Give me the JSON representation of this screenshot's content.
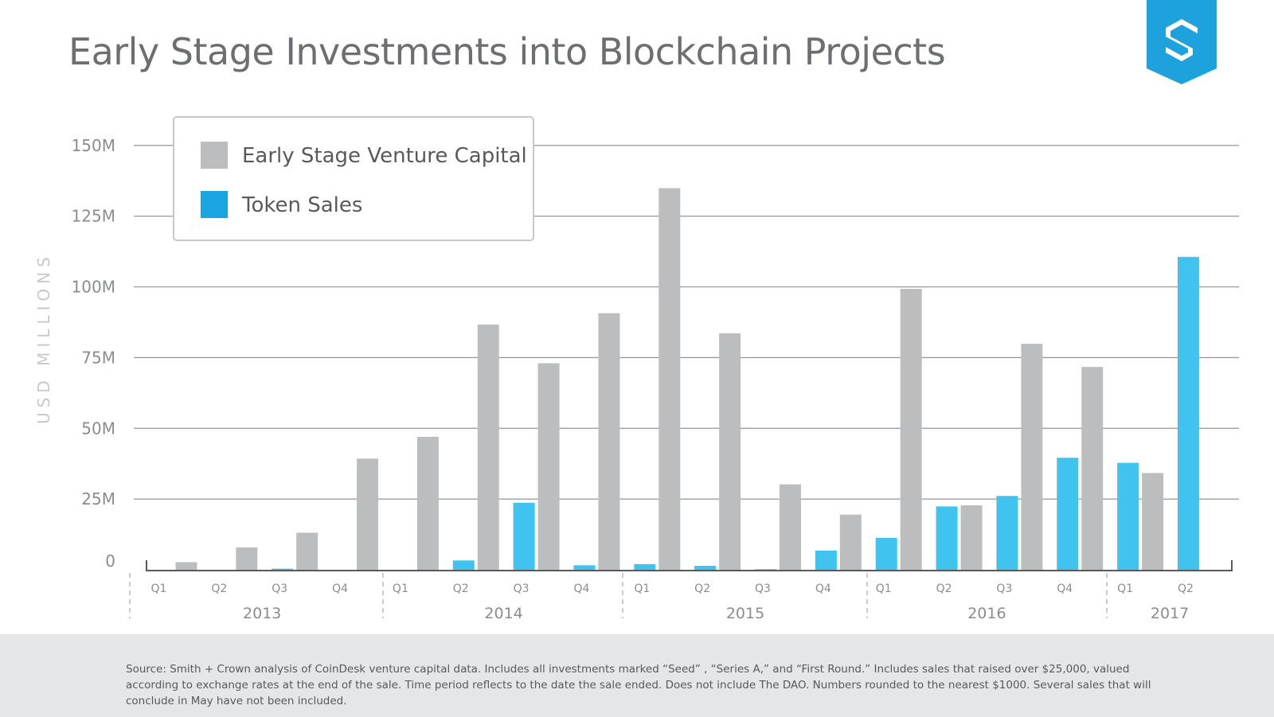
{
  "chart_data": {
    "type": "bar",
    "title": "Early Stage Investments into Blockchain Projects",
    "ylabel": "USD MILLIONS",
    "xlabel": "",
    "ylim": [
      0,
      150
    ],
    "y_ticks": [
      0,
      25,
      50,
      75,
      100,
      125,
      150
    ],
    "y_tick_labels": [
      "0",
      "25M",
      "50M",
      "75M",
      "100M",
      "125M",
      "150M"
    ],
    "grid": true,
    "legend_position": "top-left",
    "categories": [
      "Q1",
      "Q2",
      "Q3",
      "Q4",
      "Q1",
      "Q2",
      "Q3",
      "Q4",
      "Q1",
      "Q2",
      "Q3",
      "Q4",
      "Q1",
      "Q2",
      "Q3",
      "Q4",
      "Q1",
      "Q2"
    ],
    "years": [
      {
        "label": "2013",
        "quarters": 4
      },
      {
        "label": "2014",
        "quarters": 4
      },
      {
        "label": "2015",
        "quarters": 4
      },
      {
        "label": "2016",
        "quarters": 4
      },
      {
        "label": "2017",
        "quarters": 2
      }
    ],
    "series": [
      {
        "name": "Token Sales",
        "color": "#40c4ef",
        "values": [
          0,
          0,
          0.4,
          0,
          0,
          3.3,
          23.7,
          1.6,
          2,
          1.4,
          0.2,
          6.8,
          11.3,
          22.4,
          26.1,
          39.6,
          37.8,
          110.6
        ]
      },
      {
        "name": "Early Stage Venture Capital",
        "color": "#bcbdbf",
        "values": [
          2.7,
          7.9,
          13.1,
          39.3,
          47,
          86.7,
          73,
          90.7,
          134.9,
          83.6,
          30.2,
          19.5,
          99.3,
          22.8,
          79.9,
          71.7,
          34.2,
          null
        ]
      }
    ],
    "legend": [
      {
        "label": "Early Stage Venture Capital",
        "color": "#bcbdbf"
      },
      {
        "label": "Token Sales",
        "color": "#1aa5e0"
      }
    ]
  },
  "footer": {
    "source": "Source: Smith + Crown analysis of CoinDesk venture capital data. Includes all investments marked “Seed” , “Series A,” and “First Round.”  Includes sales that raised over $25,000, valued according to exchange rates at the end of the sale. Time period reflects to the date the sale ended. Does not include The DAO. Numbers rounded to the nearest $1000. Several sales that will conclude in May have not been included."
  },
  "logo": {
    "name": "smith-crown-logo",
    "color": "#1ea2de"
  }
}
